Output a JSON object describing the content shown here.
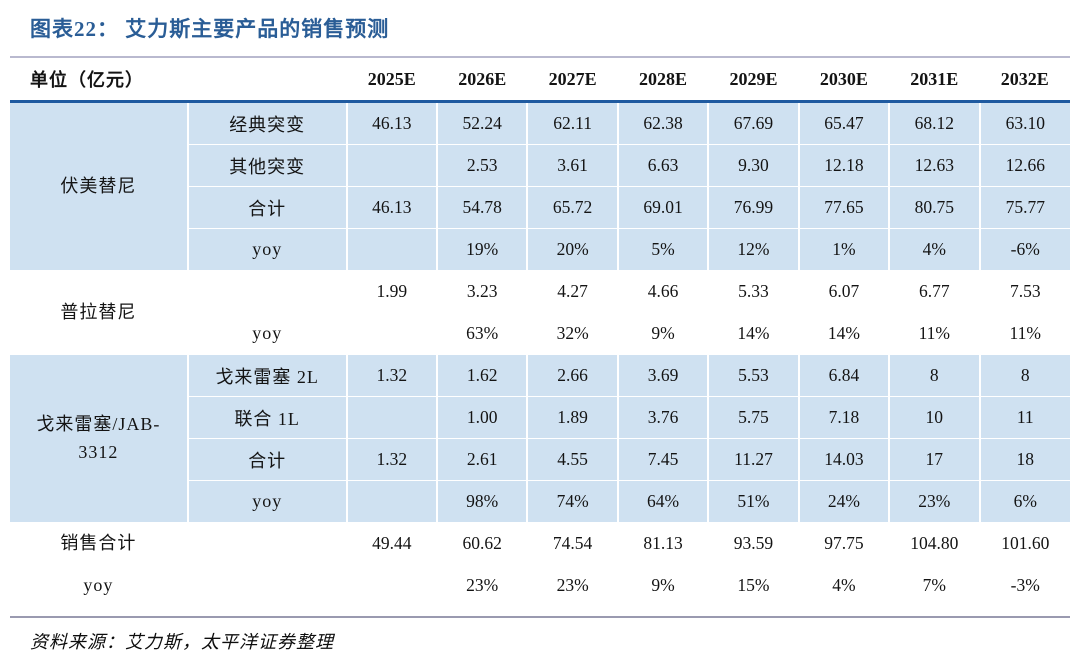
{
  "title": "图表22： 艾力斯主要产品的销售预测",
  "source": "资料来源：艾力斯，太平洋证券整理",
  "colors": {
    "title_blue": "#2a5d96",
    "band_blue": "#cfe1f1",
    "header_rule_blue": "#1f5aa0",
    "top_rule_gray": "#b9b9cf",
    "footer_rule_gray": "#9a9ab0"
  },
  "table": {
    "unit_header": "单位（亿元）",
    "years": [
      "2025E",
      "2026E",
      "2027E",
      "2028E",
      "2029E",
      "2030E",
      "2031E",
      "2032E"
    ],
    "groups": [
      {
        "name": "伏美替尼",
        "shaded": true,
        "label_in_first_col": false,
        "rows": [
          {
            "label": "经典突变",
            "values": [
              "46.13",
              "52.24",
              "62.11",
              "62.38",
              "67.69",
              "65.47",
              "68.12",
              "63.10"
            ]
          },
          {
            "label": "其他突变",
            "values": [
              "",
              "2.53",
              "3.61",
              "6.63",
              "9.30",
              "12.18",
              "12.63",
              "12.66"
            ]
          },
          {
            "label": "合计",
            "values": [
              "46.13",
              "54.78",
              "65.72",
              "69.01",
              "76.99",
              "77.65",
              "80.75",
              "75.77"
            ]
          },
          {
            "label": "yoy",
            "values": [
              "",
              "19%",
              "20%",
              "5%",
              "12%",
              "1%",
              "4%",
              "-6%"
            ]
          }
        ]
      },
      {
        "name": "普拉替尼",
        "shaded": false,
        "label_in_first_col": false,
        "rows": [
          {
            "label": "",
            "values": [
              "1.99",
              "3.23",
              "4.27",
              "4.66",
              "5.33",
              "6.07",
              "6.77",
              "7.53"
            ]
          },
          {
            "label": "yoy",
            "values": [
              "",
              "63%",
              "32%",
              "9%",
              "14%",
              "14%",
              "11%",
              "11%"
            ]
          }
        ]
      },
      {
        "name": "戈来雷塞/JAB-3312",
        "name_wrap": [
          "戈来雷塞/JAB-",
          "3312"
        ],
        "shaded": true,
        "label_in_first_col": false,
        "rows": [
          {
            "label": "戈来雷塞 2L",
            "values": [
              "1.32",
              "1.62",
              "2.66",
              "3.69",
              "5.53",
              "6.84",
              "8",
              "8"
            ]
          },
          {
            "label": "联合 1L",
            "values": [
              "",
              "1.00",
              "1.89",
              "3.76",
              "5.75",
              "7.18",
              "10",
              "11"
            ]
          },
          {
            "label": "合计",
            "values": [
              "1.32",
              "2.61",
              "4.55",
              "7.45",
              "11.27",
              "14.03",
              "17",
              "18"
            ]
          },
          {
            "label": "yoy",
            "values": [
              "",
              "98%",
              "74%",
              "64%",
              "51%",
              "24%",
              "23%",
              "6%"
            ]
          }
        ]
      },
      {
        "name": "销售合计",
        "shaded": false,
        "label_in_first_col": true,
        "rows": [
          {
            "label": "销售合计",
            "values": [
              "49.44",
              "60.62",
              "74.54",
              "81.13",
              "93.59",
              "97.75",
              "104.80",
              "101.60"
            ]
          },
          {
            "label": "yoy",
            "values": [
              "",
              "23%",
              "23%",
              "9%",
              "15%",
              "4%",
              "7%",
              "-3%"
            ]
          }
        ]
      }
    ]
  }
}
